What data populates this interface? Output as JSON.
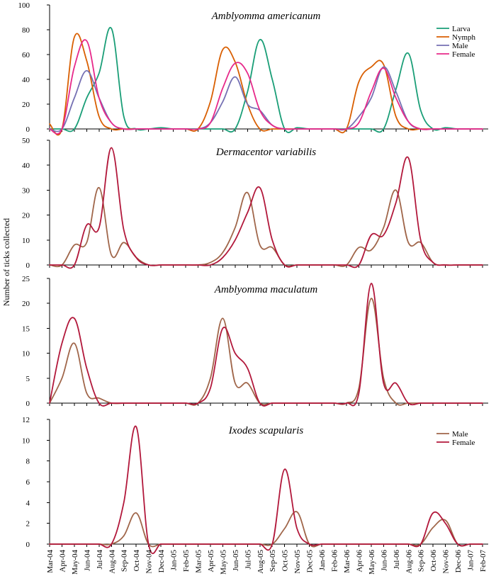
{
  "chart_data": {
    "type": "line",
    "ylabel": "Number of ticks collected",
    "categories": [
      "Mar-04",
      "Apr-04",
      "May-04",
      "Jun-04",
      "Jul-04",
      "Aug-04",
      "Sep-04",
      "Oct-04",
      "Nov-04",
      "Dec-04",
      "Jan-05",
      "Feb-05",
      "Mar-05",
      "Apr-05",
      "May-05",
      "Jun-05",
      "Jul-05",
      "Aug-05",
      "Sep-05",
      "Oct-05",
      "Nov-05",
      "Dec-05",
      "Jan-06",
      "Feb-06",
      "Mar-06",
      "Apr-06",
      "May-06",
      "Jun-06",
      "Jul-06",
      "Aug-06",
      "Sep-06",
      "Oct-06",
      "Nov-06",
      "Dec-06",
      "Jan-07",
      "Feb-07"
    ],
    "colors": {
      "larva": "#1a9e77",
      "nymph": "#d95f02",
      "male_aa": "#7570b3",
      "female_aa": "#e7298a",
      "male": "#a0664a",
      "female": "#b2183b"
    },
    "panels": [
      {
        "title": "Amblyomma americanum",
        "ylim": [
          0,
          100
        ],
        "yticks": [
          0,
          20,
          40,
          60,
          80,
          100
        ],
        "legend_position": "top-right",
        "series": [
          {
            "name": "Larva",
            "color_key": "larva",
            "values": [
              0,
              0,
              0,
              25,
              45,
              81,
              10,
              0,
              0,
              1,
              0,
              0,
              0,
              0,
              0,
              0,
              30,
              72,
              40,
              0,
              1,
              0,
              0,
              0,
              0,
              0,
              0,
              0,
              32,
              61,
              15,
              0,
              1,
              0,
              0,
              0
            ]
          },
          {
            "name": "Nymph",
            "color_key": "nymph",
            "values": [
              4,
              0,
              74,
              55,
              10,
              0,
              0,
              0,
              0,
              0,
              0,
              0,
              0,
              22,
              64,
              54,
              20,
              0,
              0,
              0,
              0,
              0,
              0,
              0,
              0,
              38,
              50,
              52,
              10,
              0,
              0,
              0,
              0,
              0,
              0,
              0
            ]
          },
          {
            "name": "Male",
            "color_key": "male_aa",
            "values": [
              0,
              0,
              25,
              47,
              25,
              5,
              0,
              0,
              0,
              0,
              0,
              0,
              0,
              5,
              22,
              42,
              20,
              15,
              3,
              0,
              0,
              0,
              0,
              0,
              0,
              10,
              25,
              50,
              30,
              6,
              0,
              0,
              0,
              0,
              0,
              0
            ]
          },
          {
            "name": "Female",
            "color_key": "female_aa",
            "values": [
              0,
              0,
              50,
              71,
              25,
              5,
              0,
              0,
              0,
              0,
              0,
              0,
              0,
              5,
              33,
              53,
              45,
              15,
              3,
              0,
              0,
              0,
              0,
              0,
              0,
              5,
              30,
              49,
              25,
              6,
              0,
              0,
              0,
              0,
              0,
              0
            ]
          }
        ]
      },
      {
        "title": "Dermacentor variabilis",
        "ylim": [
          0,
          50
        ],
        "yticks": [
          0,
          10,
          20,
          30,
          40,
          50
        ],
        "legend_position": "none",
        "series": [
          {
            "name": "Male",
            "color_key": "male",
            "values": [
              0,
              0,
              8,
              9,
              31,
              4,
              9,
              3,
              0,
              0,
              0,
              0,
              0,
              1,
              5,
              15,
              29,
              8,
              7,
              0,
              0,
              0,
              0,
              0,
              0,
              7,
              6,
              15,
              30,
              9,
              9,
              1,
              0,
              0,
              0,
              0
            ]
          },
          {
            "name": "Female",
            "color_key": "female",
            "values": [
              0,
              0,
              0,
              16,
              15,
              47,
              14,
              3,
              0,
              0,
              0,
              0,
              0,
              0,
              3,
              10,
              21,
              31,
              10,
              0,
              0,
              0,
              0,
              0,
              0,
              0,
              12,
              12,
              25,
              43,
              10,
              1,
              0,
              0,
              0,
              0
            ]
          }
        ]
      },
      {
        "title": "Amblyomma maculatum",
        "ylim": [
          0,
          25
        ],
        "yticks": [
          0,
          5,
          10,
          15,
          20,
          25
        ],
        "legend_position": "none",
        "series": [
          {
            "name": "Male",
            "color_key": "male",
            "values": [
              0,
              5,
              12,
              2,
              1,
              0,
              0,
              0,
              0,
              0,
              0,
              0,
              0,
              5,
              17,
              4,
              4,
              0,
              0,
              0,
              0,
              0,
              0,
              0,
              0,
              3,
              21,
              5,
              0,
              0,
              0,
              0,
              0,
              0,
              0,
              0
            ]
          },
          {
            "name": "Female",
            "color_key": "female",
            "values": [
              0,
              12,
              17,
              7,
              0,
              0,
              0,
              0,
              0,
              0,
              0,
              0,
              0,
              3,
              15,
              10,
              7,
              0,
              0,
              0,
              0,
              0,
              0,
              0,
              0,
              2,
              24,
              4,
              4,
              0,
              0,
              0,
              0,
              0,
              0,
              0
            ]
          }
        ]
      },
      {
        "title": "Ixodes scapularis",
        "ylim": [
          0,
          12
        ],
        "yticks": [
          0,
          2,
          4,
          6,
          8,
          10,
          12
        ],
        "legend_position": "top-right",
        "series": [
          {
            "name": "Male",
            "color_key": "male",
            "values": [
              0,
              0,
              0,
              0,
              0,
              0,
              0.8,
              3,
              0,
              0,
              0,
              0,
              0,
              0,
              0,
              0,
              0,
              0,
              0,
              1.5,
              3.1,
              0,
              0,
              0,
              0,
              0,
              0,
              0,
              0,
              0,
              0,
              1.6,
              2.3,
              0,
              0,
              0
            ]
          },
          {
            "name": "Female",
            "color_key": "female",
            "values": [
              0,
              0,
              0,
              0,
              0,
              0,
              4,
              11.3,
              0,
              0,
              0,
              0,
              0,
              0,
              0,
              0,
              0,
              0,
              0,
              7.2,
              1.5,
              0,
              0,
              0,
              0,
              0,
              0,
              0,
              0,
              0,
              0,
              3,
              2,
              0,
              0,
              0
            ]
          }
        ]
      }
    ]
  }
}
